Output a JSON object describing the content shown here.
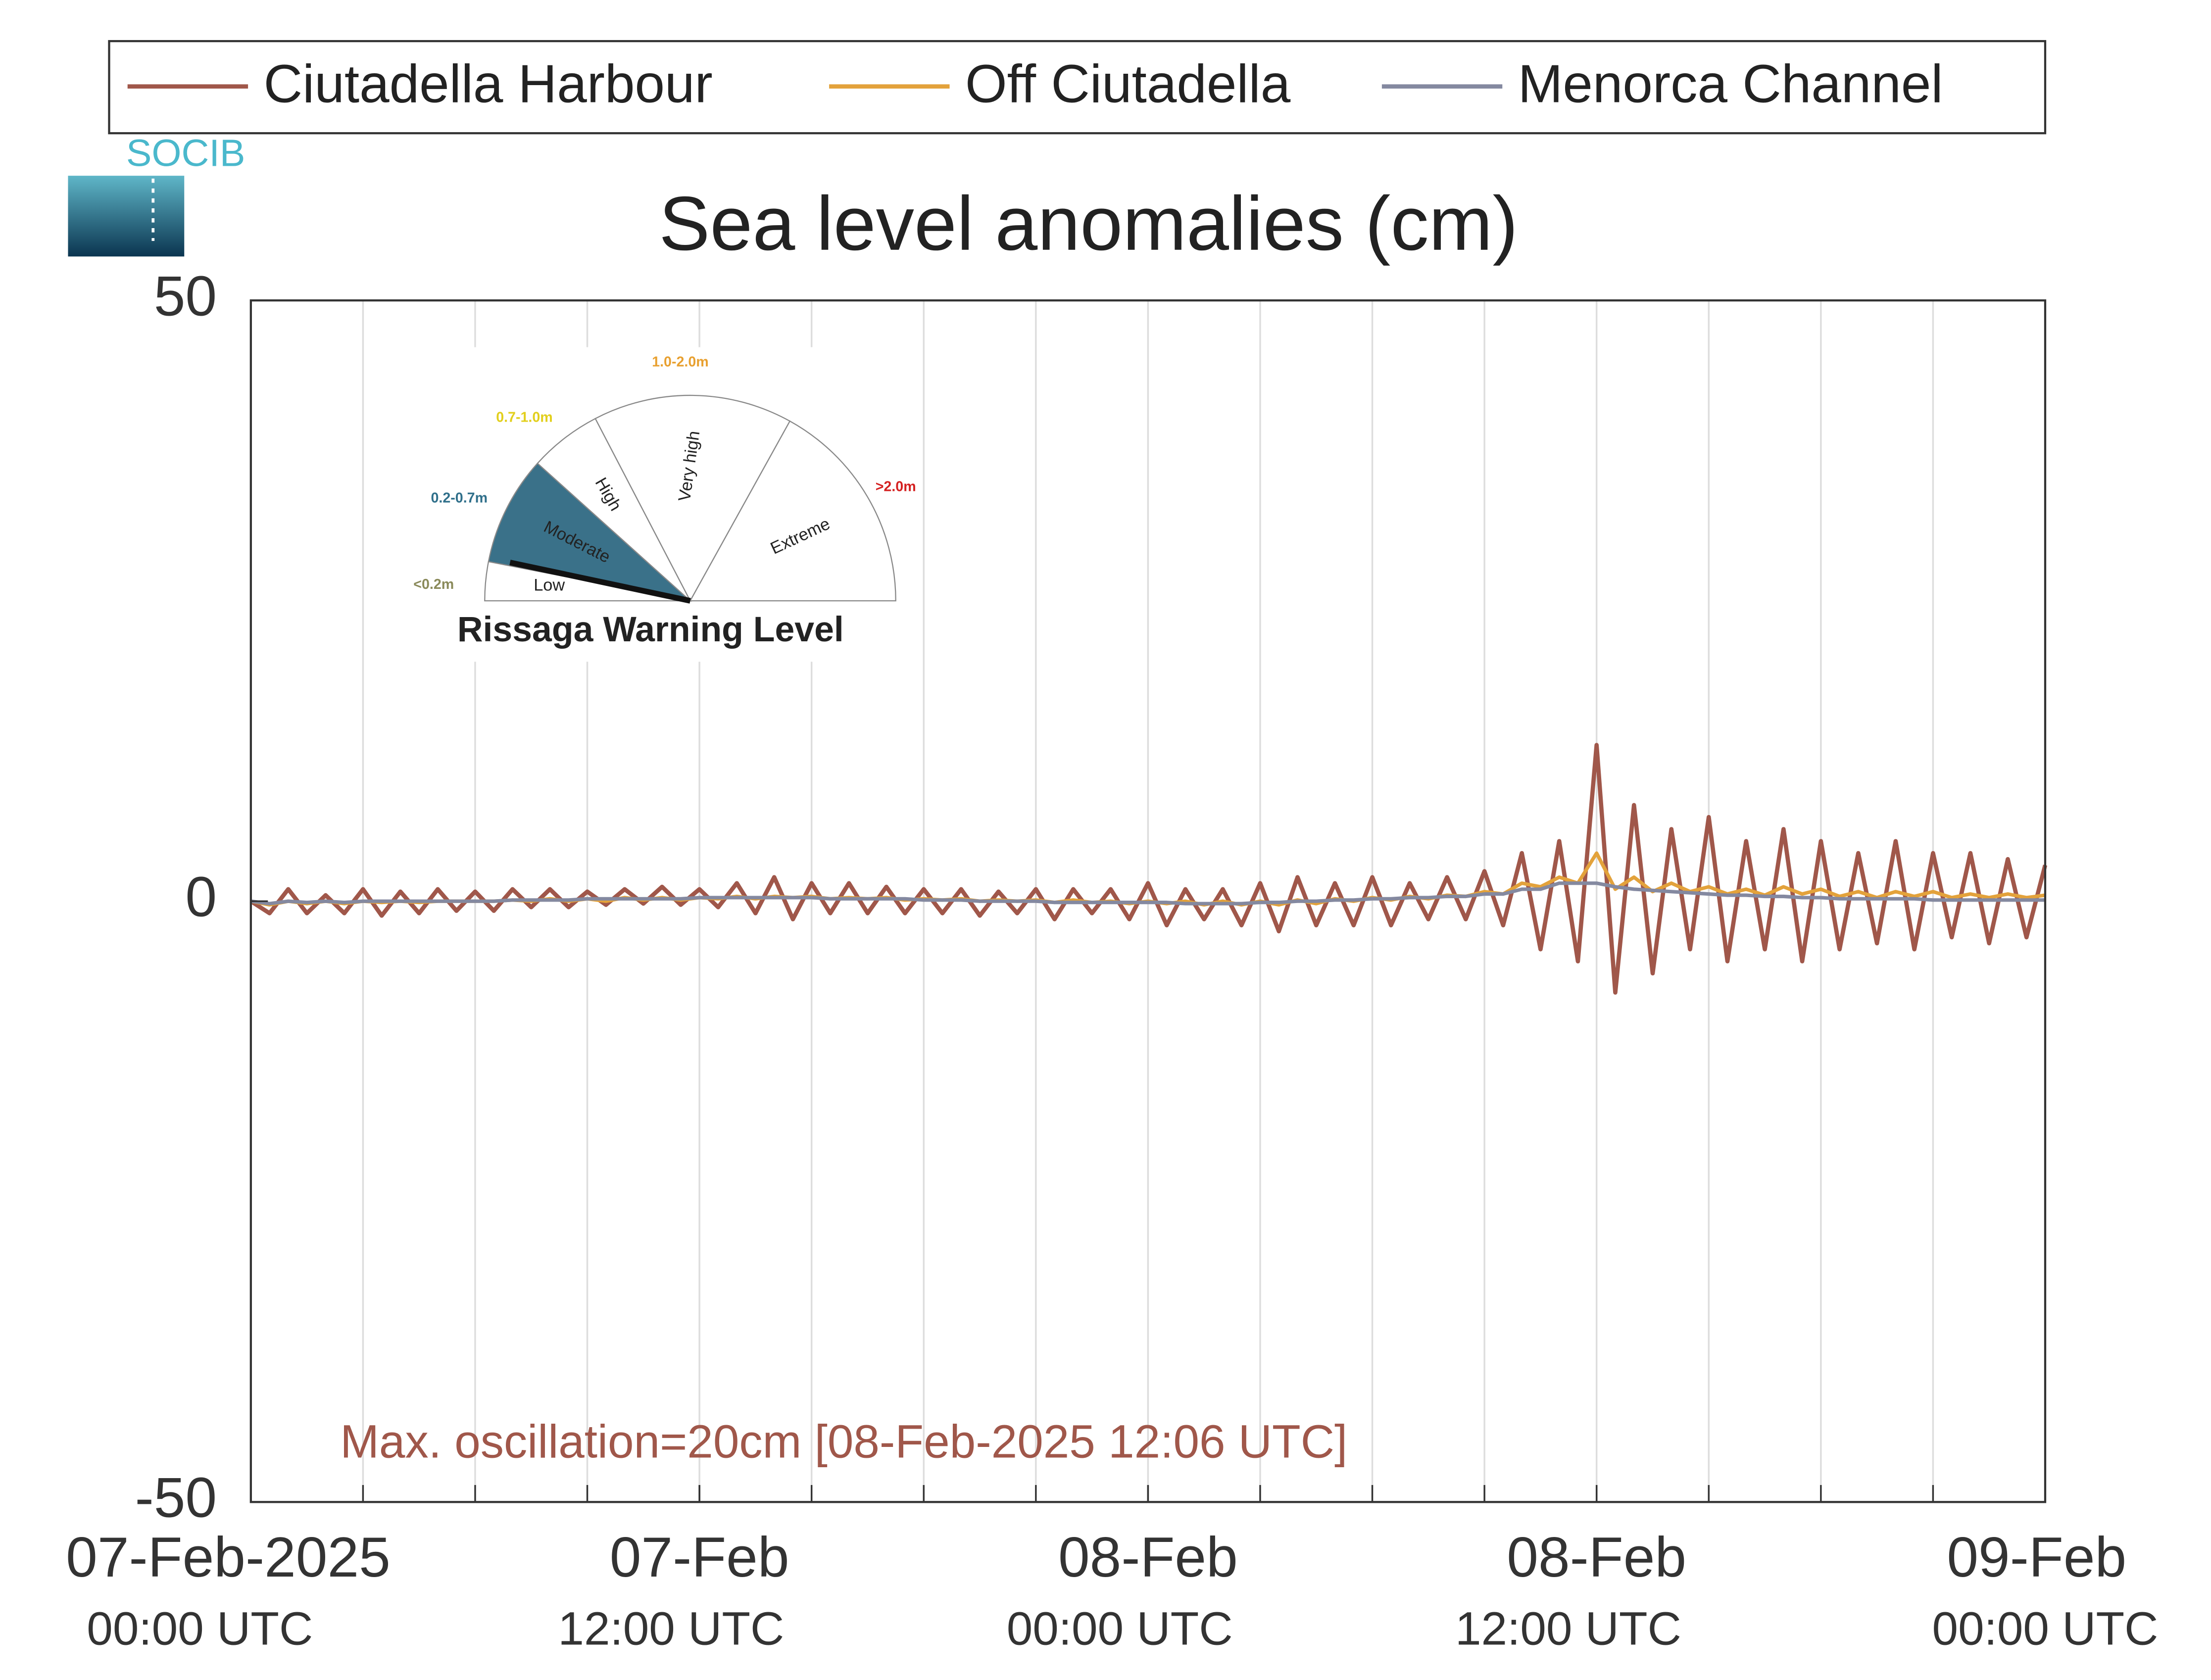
{
  "chart_data": {
    "type": "line",
    "title": "Sea level anomalies (cm)",
    "logo": "SOCIB",
    "annotation": "Max. oscillation=20cm [08-Feb-2025 12:06 UTC]",
    "annotation_color": "#a0574a",
    "x": [
      "2025-02-07T00:00",
      "2025-02-07T00:30",
      "2025-02-07T01:00",
      "2025-02-07T01:30",
      "2025-02-07T02:00",
      "2025-02-07T02:30",
      "2025-02-07T03:00",
      "2025-02-07T03:30",
      "2025-02-07T04:00",
      "2025-02-07T04:30",
      "2025-02-07T05:00",
      "2025-02-07T05:30",
      "2025-02-07T06:00",
      "2025-02-07T06:30",
      "2025-02-07T07:00",
      "2025-02-07T07:30",
      "2025-02-07T08:00",
      "2025-02-07T08:30",
      "2025-02-07T09:00",
      "2025-02-07T09:30",
      "2025-02-07T10:00",
      "2025-02-07T10:30",
      "2025-02-07T11:00",
      "2025-02-07T11:30",
      "2025-02-07T12:00",
      "2025-02-07T12:30",
      "2025-02-07T13:00",
      "2025-02-07T13:30",
      "2025-02-07T14:00",
      "2025-02-07T14:30",
      "2025-02-07T15:00",
      "2025-02-07T15:30",
      "2025-02-07T16:00",
      "2025-02-07T16:30",
      "2025-02-07T17:00",
      "2025-02-07T17:30",
      "2025-02-07T18:00",
      "2025-02-07T18:30",
      "2025-02-07T19:00",
      "2025-02-07T19:30",
      "2025-02-07T20:00",
      "2025-02-07T20:30",
      "2025-02-07T21:00",
      "2025-02-07T21:30",
      "2025-02-07T22:00",
      "2025-02-07T22:30",
      "2025-02-07T23:00",
      "2025-02-07T23:30",
      "2025-02-08T00:00",
      "2025-02-08T00:30",
      "2025-02-08T01:00",
      "2025-02-08T01:30",
      "2025-02-08T02:00",
      "2025-02-08T02:30",
      "2025-02-08T03:00",
      "2025-02-08T03:30",
      "2025-02-08T04:00",
      "2025-02-08T04:30",
      "2025-02-08T05:00",
      "2025-02-08T05:30",
      "2025-02-08T06:00",
      "2025-02-08T06:30",
      "2025-02-08T07:00",
      "2025-02-08T07:30",
      "2025-02-08T08:00",
      "2025-02-08T08:30",
      "2025-02-08T09:00",
      "2025-02-08T09:30",
      "2025-02-08T10:00",
      "2025-02-08T10:30",
      "2025-02-08T11:00",
      "2025-02-08T11:30",
      "2025-02-08T12:00",
      "2025-02-08T12:30",
      "2025-02-08T13:00",
      "2025-02-08T13:30",
      "2025-02-08T14:00",
      "2025-02-08T14:30",
      "2025-02-08T15:00",
      "2025-02-08T15:30",
      "2025-02-08T16:00",
      "2025-02-08T16:30",
      "2025-02-08T17:00",
      "2025-02-08T17:30",
      "2025-02-08T18:00",
      "2025-02-08T18:30",
      "2025-02-08T19:00",
      "2025-02-08T19:30",
      "2025-02-08T20:00",
      "2025-02-08T20:30",
      "2025-02-08T21:00",
      "2025-02-08T21:30",
      "2025-02-08T22:00",
      "2025-02-08T22:30",
      "2025-02-08T23:00",
      "2025-02-08T23:30",
      "2025-02-09T00:00"
    ],
    "series": [
      {
        "name": "Ciutadella Harbour",
        "color": "#a0574a",
        "values": [
          0,
          -1,
          1,
          -1,
          0.5,
          -1,
          1,
          -1.2,
          0.8,
          -1,
          1,
          -0.8,
          0.8,
          -0.8,
          1,
          -0.5,
          1,
          -0.5,
          0.8,
          -0.3,
          1,
          -0.2,
          1.2,
          -0.3,
          1,
          -0.5,
          1.5,
          -1,
          2,
          -1.5,
          1.5,
          -1,
          1.5,
          -1,
          1.2,
          -1,
          1,
          -1,
          1,
          -1.2,
          0.8,
          -1,
          1,
          -1.5,
          1,
          -1,
          1,
          -1.5,
          1.5,
          -2,
          1,
          -1.5,
          1,
          -2,
          1.5,
          -2.5,
          2,
          -2,
          1.5,
          -2,
          2,
          -2,
          1.5,
          -1.5,
          2,
          -1.5,
          2.5,
          -2,
          4,
          -4,
          5,
          -5,
          13,
          -7.6,
          8,
          -6,
          6,
          -4,
          7,
          -5,
          5,
          -4,
          6,
          -5,
          5,
          -4,
          4,
          -3.5,
          5,
          -4,
          4,
          -3,
          4,
          -3.5,
          3.5,
          -3,
          3
        ]
      },
      {
        "name": "Off Ciutadella",
        "color": "#e3a23b",
        "values": [
          0,
          -0.3,
          0,
          -0.2,
          0,
          -0.2,
          0,
          -0.1,
          0,
          -0.1,
          0,
          0,
          0,
          0,
          0.1,
          0,
          0.2,
          0,
          0.2,
          0,
          0.3,
          0.1,
          0.3,
          0.1,
          0.3,
          0.2,
          0.4,
          0.2,
          0.4,
          0.3,
          0.4,
          0.2,
          0.3,
          0.2,
          0.3,
          0.1,
          0.2,
          0.1,
          0.2,
          0,
          0.1,
          0,
          0.1,
          -0.1,
          0.1,
          -0.1,
          0,
          -0.2,
          0,
          -0.2,
          0,
          -0.3,
          0,
          -0.3,
          0,
          -0.3,
          0.1,
          -0.2,
          0.2,
          0,
          0.3,
          0.1,
          0.4,
          0.2,
          0.5,
          0.4,
          0.8,
          0.6,
          1.5,
          1.2,
          2,
          1.5,
          4,
          1,
          2,
          0.8,
          1.5,
          0.8,
          1.2,
          0.6,
          1,
          0.5,
          1.2,
          0.6,
          1,
          0.4,
          0.8,
          0.3,
          0.8,
          0.4,
          0.8,
          0.3,
          0.6,
          0.3,
          0.6,
          0.3,
          0.5
        ]
      },
      {
        "name": "Menorca Channel",
        "color": "#8489a0",
        "values": [
          0,
          -0.2,
          0,
          -0.1,
          0,
          -0.1,
          0,
          0,
          0,
          0,
          0,
          0,
          0,
          0,
          0.1,
          0.1,
          0.1,
          0.1,
          0.2,
          0.2,
          0.2,
          0.2,
          0.2,
          0.2,
          0.3,
          0.3,
          0.3,
          0.3,
          0.3,
          0.3,
          0.3,
          0.2,
          0.2,
          0.2,
          0.2,
          0.2,
          0.1,
          0.1,
          0.1,
          0,
          0,
          0,
          0,
          -0.1,
          -0.1,
          -0.1,
          -0.1,
          -0.1,
          -0.1,
          -0.1,
          -0.2,
          -0.2,
          -0.2,
          -0.2,
          -0.1,
          -0.1,
          0,
          0,
          0.1,
          0.1,
          0.2,
          0.2,
          0.3,
          0.3,
          0.4,
          0.4,
          0.6,
          0.6,
          1,
          1,
          1.5,
          1.5,
          1.5,
          1.2,
          1,
          0.9,
          0.8,
          0.7,
          0.6,
          0.5,
          0.5,
          0.4,
          0.4,
          0.3,
          0.3,
          0.2,
          0.2,
          0.2,
          0.2,
          0.2,
          0.1,
          0.1,
          0.1,
          0.1,
          0.1,
          0.1,
          0.1
        ]
      }
    ],
    "xlim": [
      "2025-02-07T00:00",
      "2025-02-09T00:00"
    ],
    "xticks": [
      {
        "value": "2025-02-07T00:00",
        "label": [
          "07-Feb-2025",
          "00:00 UTC"
        ]
      },
      {
        "value": "2025-02-07T12:00",
        "label": [
          "07-Feb",
          "12:00 UTC"
        ]
      },
      {
        "value": "2025-02-08T00:00",
        "label": [
          "08-Feb",
          "00:00 UTC"
        ]
      },
      {
        "value": "2025-02-08T12:00",
        "label": [
          "08-Feb",
          "12:00 UTC"
        ]
      },
      {
        "value": "2025-02-09T00:00",
        "label": [
          "09-Feb",
          "00:00 UTC"
        ]
      }
    ],
    "xgrid": [
      "2025-02-07T03:00",
      "2025-02-07T06:00",
      "2025-02-07T09:00",
      "2025-02-07T12:00",
      "2025-02-07T15:00",
      "2025-02-07T18:00",
      "2025-02-07T21:00",
      "2025-02-08T00:00",
      "2025-02-08T03:00",
      "2025-02-08T06:00",
      "2025-02-08T09:00",
      "2025-02-08T12:00",
      "2025-02-08T15:00",
      "2025-02-08T18:00",
      "2025-02-08T21:00"
    ],
    "ylim": [
      -50,
      50
    ],
    "yticks": [
      -50,
      0,
      50
    ],
    "grid": true,
    "legend": "top",
    "warning_gauge": {
      "title": "Rissaga Warning Level",
      "active": "Moderate",
      "active_color": "#3a7189",
      "levels": [
        {
          "name": "Low",
          "range": "<0.2m",
          "color": "#8a8a5a"
        },
        {
          "name": "Moderate",
          "range": "0.2-0.7m",
          "color": "#2f6f8a"
        },
        {
          "name": "High",
          "range": "0.7-1.0m",
          "color": "#e2cf1c"
        },
        {
          "name": "Very high",
          "range": "1.0-2.0m",
          "color": "#e8a030"
        },
        {
          "name": "Extreme",
          "range": ">2.0m",
          "color": "#d42020"
        }
      ]
    }
  }
}
